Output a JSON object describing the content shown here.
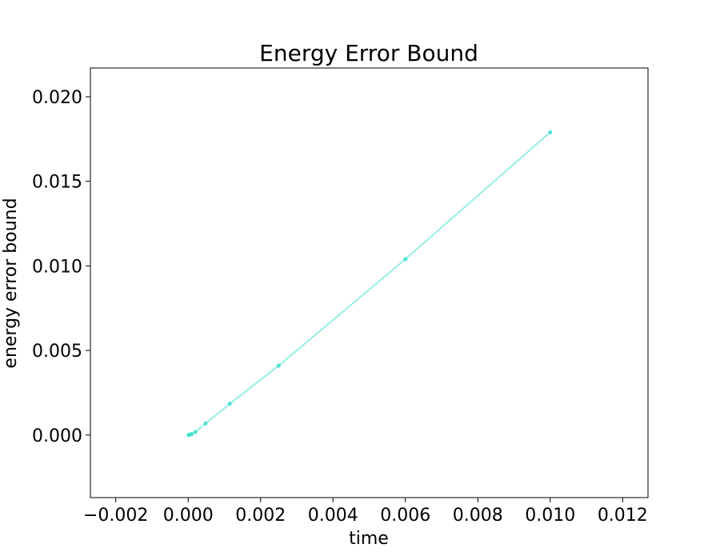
{
  "chart_data": {
    "type": "line",
    "title": "Energy Error Bound",
    "xlabel": "time",
    "ylabel": "energy error bound",
    "xlim": [
      -0.0027,
      0.0127
    ],
    "ylim": [
      -0.0037,
      0.0217
    ],
    "xticks": [
      -0.002,
      0.0,
      0.002,
      0.004,
      0.006,
      0.008,
      0.01,
      0.012
    ],
    "xtick_labels": [
      "−0.002",
      "0.000",
      "0.002",
      "0.004",
      "0.006",
      "0.008",
      "0.010",
      "0.012"
    ],
    "yticks": [
      0.0,
      0.005,
      0.01,
      0.015,
      0.02
    ],
    "ytick_labels": [
      "0.000",
      "0.005",
      "0.010",
      "0.015",
      "0.020"
    ],
    "grid": false,
    "legend": "none",
    "line_color": "#40e0d0",
    "series": [
      {
        "x": [
          1e-05,
          4e-05,
          0.0001,
          0.0002,
          0.00048,
          0.00115,
          0.0025,
          0.006,
          0.01
        ],
        "y": [
          0.0,
          2e-05,
          6e-05,
          0.00018,
          0.00068,
          0.00185,
          0.0041,
          0.0104,
          0.0179
        ]
      }
    ]
  }
}
